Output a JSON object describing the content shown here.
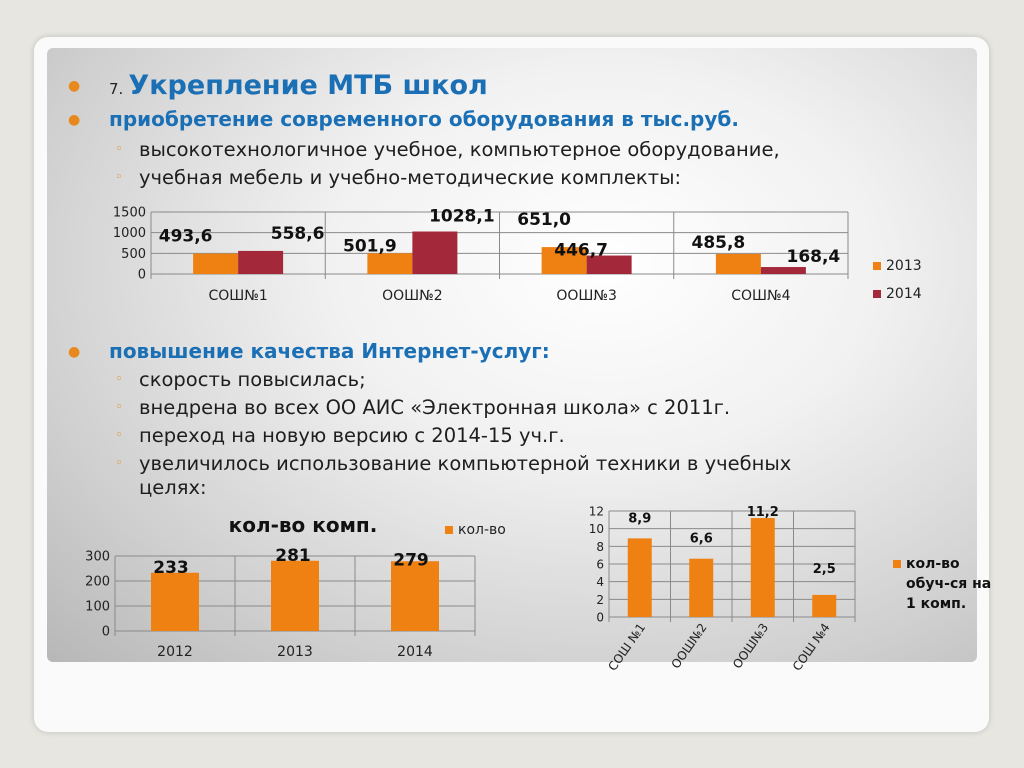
{
  "heading": {
    "number": "7.",
    "title": "Укрепление МТБ школ"
  },
  "section1": {
    "title": "приобретение современного оборудования  в тыс.руб.",
    "items": [
      "высокотехнологичное учебное, компьютерное оборудование,",
      "учебная мебель и учебно-методические комплекты:"
    ]
  },
  "section2": {
    "title": "повышение качества Интернет-услуг:",
    "items": [
      "скорость повысилась;",
      "внедрена во всех ОО АИС «Электронная школа» с 2011г.",
      "переход на новую версию с 2014-15 уч.г.",
      "увеличилось использование компьютерной техники в учебных",
      "целях:"
    ]
  },
  "colors": {
    "bullet": "#e8891d",
    "blue_text": "#1a6fb5",
    "orange": "#ee8111",
    "crimson": "#a3283a"
  },
  "chart_data": [
    {
      "type": "bar",
      "categories": [
        "СОШ№1",
        "ООШ№2",
        "ООШ№3",
        "СОШ№4"
      ],
      "series": [
        {
          "name": "2013",
          "values": [
            493.6,
            501.9,
            651.0,
            485.8
          ],
          "labels": [
            "493,6",
            "501,9",
            "651,0",
            "485,8"
          ],
          "color": "#ee8111"
        },
        {
          "name": "2014",
          "values": [
            558.6,
            1028.1,
            446.7,
            168.4
          ],
          "labels": [
            "558,6",
            "1028,1",
            "446,7",
            "168,4"
          ],
          "color": "#a3283a"
        }
      ],
      "ylim": [
        0,
        1500
      ],
      "yticks": [
        0,
        500,
        1000,
        1500
      ],
      "grid": true,
      "legend": "right"
    },
    {
      "type": "bar",
      "title": "кол-во комп.",
      "categories": [
        "2012",
        "2013",
        "2014"
      ],
      "series": [
        {
          "name": "кол-во",
          "values": [
            233,
            281,
            279
          ],
          "labels": [
            "233",
            "281",
            "279"
          ],
          "color": "#ee8111"
        }
      ],
      "ylim": [
        0,
        300
      ],
      "yticks": [
        0,
        100,
        200,
        300
      ],
      "grid": true,
      "legend": "top-right"
    },
    {
      "type": "bar",
      "categories": [
        "СОШ №1",
        "ООШ№2",
        "ООШ№3",
        "СОШ №4"
      ],
      "series": [
        {
          "name": "кол-во обуч-ся на 1 комп.",
          "legend_lines": [
            "кол-во",
            "обуч-ся на",
            "1 комп."
          ],
          "values": [
            8.9,
            6.6,
            11.2,
            2.5
          ],
          "labels": [
            "8,9",
            "6,6",
            "11,2",
            "2,5"
          ],
          "color": "#ee8111"
        }
      ],
      "ylim": [
        0,
        12
      ],
      "yticks": [
        0,
        2,
        4,
        6,
        8,
        10,
        12
      ],
      "grid": true,
      "legend": "right"
    }
  ]
}
